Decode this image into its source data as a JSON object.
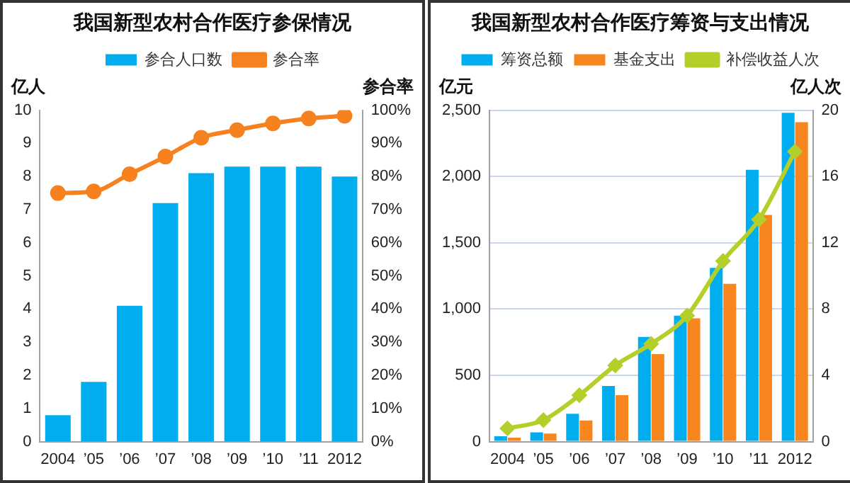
{
  "chart_data": [
    {
      "type": "bar",
      "title": "我国新型农村合作医疗参保情况",
      "ylabel": "亿人",
      "y2label": "参合率",
      "categories": [
        "2004",
        "’05",
        "’06",
        "’07",
        "’08",
        "’09",
        "’10",
        "’11",
        "2012"
      ],
      "series": [
        {
          "name": "参合人口数",
          "color": "#00aeef",
          "values": [
            0.8,
            1.8,
            4.1,
            7.2,
            8.1,
            8.3,
            8.3,
            8.3,
            8.0
          ]
        },
        {
          "name": "参合率",
          "type": "line",
          "axis": "y2",
          "color": "#f5821f",
          "values": [
            75,
            75.5,
            80.7,
            86,
            91.7,
            94,
            96,
            97.5,
            98.3
          ]
        }
      ],
      "ylim": [
        0,
        10
      ],
      "yticks": [
        0,
        1,
        2,
        3,
        4,
        5,
        6,
        7,
        8,
        9,
        10
      ],
      "y2lim": [
        0,
        100
      ],
      "y2ticks": [
        {
          "value": 0,
          "label": "0%"
        },
        {
          "value": 10,
          "label": "10%"
        },
        {
          "value": 20,
          "label": "20%"
        },
        {
          "value": 30,
          "label": "30%"
        },
        {
          "value": 40,
          "label": "40%"
        },
        {
          "value": 50,
          "label": "50%"
        },
        {
          "value": 60,
          "label": "60%"
        },
        {
          "value": 70,
          "label": "70%"
        },
        {
          "value": 80,
          "label": "80%"
        },
        {
          "value": 90,
          "label": "90%"
        },
        {
          "value": 100,
          "label": "100%"
        }
      ],
      "legend": "top",
      "marker": "circle",
      "grid": false
    },
    {
      "type": "bar",
      "title": "我国新型农村合作医疗筹资与支出情况",
      "ylabel": "亿元",
      "y2label": "亿人次",
      "categories": [
        "2004",
        "’05",
        "’06",
        "’07",
        "’08",
        "’09",
        "’10",
        "’11",
        "2012"
      ],
      "series": [
        {
          "name": "筹资总额",
          "color": "#00aeef",
          "values": [
            40,
            70,
            210,
            420,
            790,
            950,
            1310,
            2050,
            2480
          ]
        },
        {
          "name": "基金支出",
          "color": "#f7861e",
          "values": [
            30,
            60,
            160,
            350,
            660,
            930,
            1190,
            1710,
            2410
          ]
        },
        {
          "name": "补偿收益人次",
          "type": "line",
          "axis": "y2",
          "color": "#b5cf2a",
          "values": [
            0.8,
            1.3,
            2.8,
            4.6,
            5.9,
            7.6,
            10.9,
            13.4,
            17.5
          ]
        }
      ],
      "ylim": [
        0,
        2500
      ],
      "yticks": [
        0,
        500,
        {
          "value": 1000,
          "label": "1,000"
        },
        {
          "value": 1500,
          "label": "1,500"
        },
        {
          "value": 2000,
          "label": "2,000"
        },
        {
          "value": 2500,
          "label": "2,500"
        }
      ],
      "y2lim": [
        0,
        20
      ],
      "y2ticks": [
        0,
        4,
        8,
        12,
        16,
        20
      ],
      "legend": "top",
      "marker": "diamond",
      "grid": "y"
    }
  ]
}
